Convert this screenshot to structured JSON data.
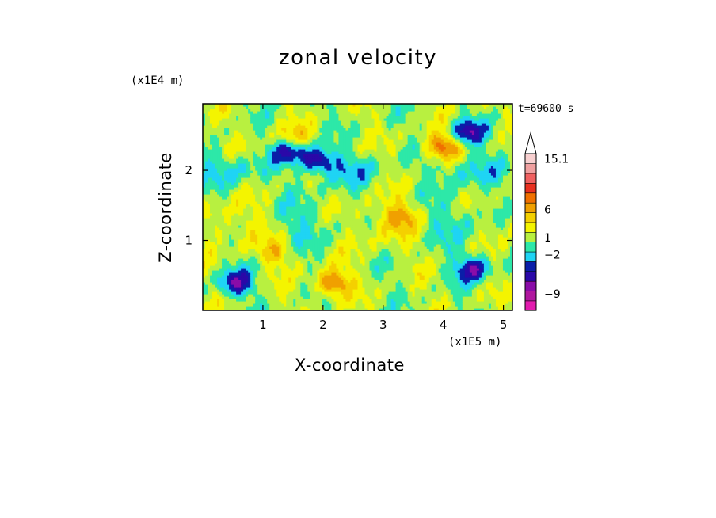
{
  "chart_data": {
    "type": "heatmap",
    "title": "zonal velocity",
    "xlabel": "X-coordinate",
    "ylabel": "Z-coordinate",
    "x_unit": "(x1E5 m)",
    "y_unit": "(x1E4 m)",
    "time_label": "t=69600 s",
    "xlim": [
      0,
      5.15
    ],
    "ylim": [
      0,
      2.95
    ],
    "x_ticks": [
      1,
      2,
      3,
      4,
      5
    ],
    "y_ticks": [
      1,
      2
    ],
    "x_tick_labels": [
      "1",
      "2",
      "3",
      "4",
      "5"
    ],
    "y_tick_labels": [
      "1",
      "2"
    ],
    "colorbar": {
      "levels_description": "discrete contour levels from low (magenta) to high (white)",
      "labels": [
        {
          "text": "15.1",
          "value": 15.1
        },
        {
          "text": "6",
          "value": 6
        },
        {
          "text": "1",
          "value": 1
        },
        {
          "text": "−2",
          "value": -2
        },
        {
          "text": "−9",
          "value": -9
        }
      ],
      "colors": [
        "#e21bae",
        "#b0179f",
        "#8a0ca8",
        "#2a08a8",
        "#0a1ea8",
        "#1fd4f4",
        "#2de8a8",
        "#b8f040",
        "#f4f400",
        "#f4d000",
        "#f0a000",
        "#f07000",
        "#e83020",
        "#f06060",
        "#f0a0a0",
        "#f8d0d0",
        "#ffffff"
      ]
    },
    "field_features": [
      {
        "x": 1.45,
        "z": 2.3,
        "level": -6,
        "desc": "blue jet core"
      },
      {
        "x": 1.9,
        "z": 2.15,
        "level": -6
      },
      {
        "x": 4.4,
        "z": 2.55,
        "level": -6
      },
      {
        "x": 4.0,
        "z": 2.35,
        "level": 6
      },
      {
        "x": 1.5,
        "z": 2.45,
        "level": 4
      },
      {
        "x": 4.5,
        "z": 0.6,
        "level": -6
      },
      {
        "x": 0.55,
        "z": 0.4,
        "level": -6
      },
      {
        "x": 2.15,
        "z": 0.4,
        "level": 6
      },
      {
        "x": 1.2,
        "z": 0.85,
        "level": 3
      },
      {
        "x": 3.3,
        "z": 1.35,
        "level": 3
      }
    ]
  }
}
